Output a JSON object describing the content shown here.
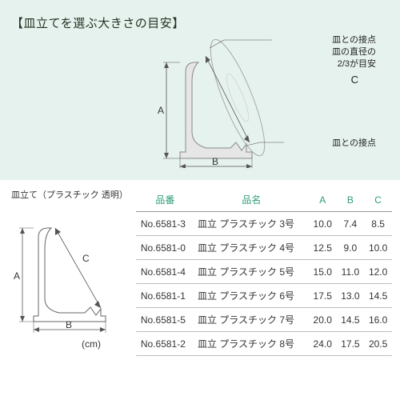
{
  "top": {
    "title": "【皿立てを選ぶ大きさの目安】",
    "annotation_contact1": "皿との接点",
    "annotation_diameter1": "皿の直径の",
    "annotation_diameter2": "2/3が目安",
    "annotation_contact2": "皿との接点",
    "label_A": "A",
    "label_B": "B",
    "label_C": "C"
  },
  "small": {
    "caption": "皿立て（プラスチック 透明）",
    "label_A": "A",
    "label_B": "B",
    "label_C": "C",
    "cm": "(cm)"
  },
  "table": {
    "headers": {
      "pn": "品番",
      "name": "品名",
      "a": "A",
      "b": "B",
      "c": "C"
    },
    "rows": [
      {
        "pn": "No.6581-3",
        "name": "皿立 プラスチック 3号",
        "a": "10.0",
        "b": "7.4",
        "c": "8.5"
      },
      {
        "pn": "No.6581-0",
        "name": "皿立 プラスチック 4号",
        "a": "12.5",
        "b": "9.0",
        "c": "10.0"
      },
      {
        "pn": "No.6581-4",
        "name": "皿立 プラスチック 5号",
        "a": "15.0",
        "b": "11.0",
        "c": "12.0"
      },
      {
        "pn": "No.6581-1",
        "name": "皿立 プラスチック 6号",
        "a": "17.5",
        "b": "13.0",
        "c": "14.5"
      },
      {
        "pn": "No.6581-5",
        "name": "皿立 プラスチック 7号",
        "a": "20.0",
        "b": "14.5",
        "c": "16.0"
      },
      {
        "pn": "No.6581-2",
        "name": "皿立 プラスチック 8号",
        "a": "24.0",
        "b": "17.5",
        "c": "20.5"
      }
    ]
  },
  "style": {
    "panel_bg": "#e6f2ed",
    "header_color": "#2e9d78",
    "diagram_fill": "#e6e6e6",
    "diagram_stroke": "#888888",
    "plate_stroke": "#aaaaaa",
    "text_color": "#333333"
  }
}
